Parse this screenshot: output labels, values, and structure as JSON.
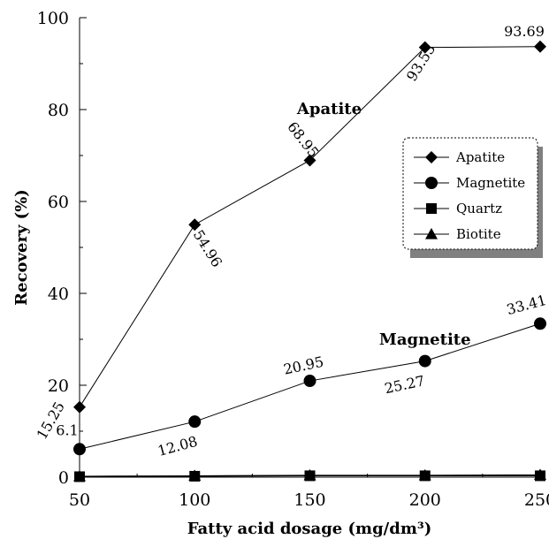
{
  "chart_data": {
    "type": "line",
    "title": "",
    "xlabel": "Fatty acid dosage (mg/dm³)",
    "ylabel": "Recovery (%)",
    "x": [
      50,
      100,
      150,
      200,
      250
    ],
    "x_tick_labels": [
      "50",
      "100",
      "150",
      "200",
      "250"
    ],
    "xlim": [
      50,
      250
    ],
    "ylim": [
      0,
      100
    ],
    "y_ticks": [
      0,
      20,
      40,
      60,
      80,
      100
    ],
    "y_tick_labels": [
      "0",
      "20",
      "40",
      "60",
      "80",
      "100"
    ],
    "grid": false,
    "legend_position": "right",
    "series": [
      {
        "name": "Apatite",
        "marker": "diamond",
        "values": [
          15.25,
          54.96,
          68.95,
          93.53,
          93.69
        ],
        "data_labels": [
          "15.25",
          "54.96",
          "68.95",
          "93.53",
          "93.69"
        ]
      },
      {
        "name": "Magnetite",
        "marker": "circle",
        "values": [
          6.1,
          12.08,
          20.95,
          25.27,
          33.41
        ],
        "data_labels": [
          "6.1",
          "12.08",
          "20.95",
          "25.27",
          "33.41"
        ]
      },
      {
        "name": "Quartz",
        "marker": "square",
        "values": [
          0.1,
          0.2,
          0.3,
          0.3,
          0.3
        ]
      },
      {
        "name": "Biotite",
        "marker": "triangle",
        "values": [
          0.2,
          0.3,
          0.4,
          0.4,
          0.5
        ]
      }
    ],
    "annotations": [
      {
        "text": "Apatite",
        "x": 150,
        "y": 80
      },
      {
        "text": "Magnetite",
        "x": 200,
        "y": 30
      }
    ]
  }
}
